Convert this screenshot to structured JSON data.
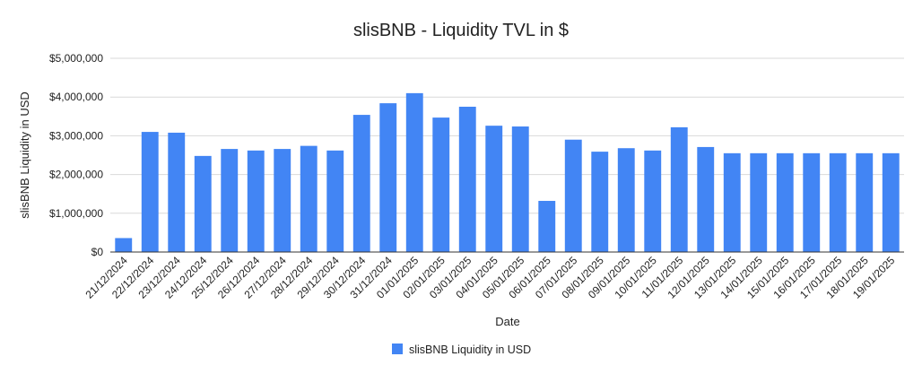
{
  "chart_data": {
    "type": "bar",
    "title": "slisBNB - Liquidity TVL in $",
    "xlabel": "Date",
    "ylabel": "slisBNB Liquidity in USD",
    "ylim": [
      0,
      5000000
    ],
    "yticks": [
      0,
      1000000,
      2000000,
      3000000,
      4000000,
      5000000
    ],
    "ytick_labels": [
      "$0",
      "$1,000,000",
      "$2,000,000",
      "$3,000,000",
      "$4,000,000",
      "$5,000,000"
    ],
    "grid": true,
    "legend_position": "bottom",
    "categories": [
      "21/12/2024",
      "22/12/2024",
      "23/12/2024",
      "24/12/2024",
      "25/12/2024",
      "26/12/2024",
      "27/12/2024",
      "28/12/2024",
      "29/12/2024",
      "30/12/2024",
      "31/12/2024",
      "01/01/2025",
      "02/01/2025",
      "03/01/2025",
      "04/01/2025",
      "05/01/2025",
      "06/01/2025",
      "07/01/2025",
      "08/01/2025",
      "09/01/2025",
      "10/01/2025",
      "11/01/2025",
      "12/01/2025",
      "13/01/2025",
      "14/01/2025",
      "15/01/2025",
      "16/01/2025",
      "17/01/2025",
      "18/01/2025",
      "19/01/2025"
    ],
    "series": [
      {
        "name": "slisBNB Liquidity in USD",
        "color": "#4285F4",
        "values": [
          360000,
          3100000,
          3080000,
          2480000,
          2660000,
          2620000,
          2660000,
          2740000,
          2620000,
          3540000,
          3840000,
          4100000,
          3470000,
          3750000,
          3260000,
          3240000,
          1320000,
          2900000,
          2590000,
          2680000,
          2620000,
          3220000,
          2710000,
          2550000,
          2550000,
          2550000,
          2550000,
          2550000,
          2550000,
          2550000
        ]
      }
    ]
  }
}
